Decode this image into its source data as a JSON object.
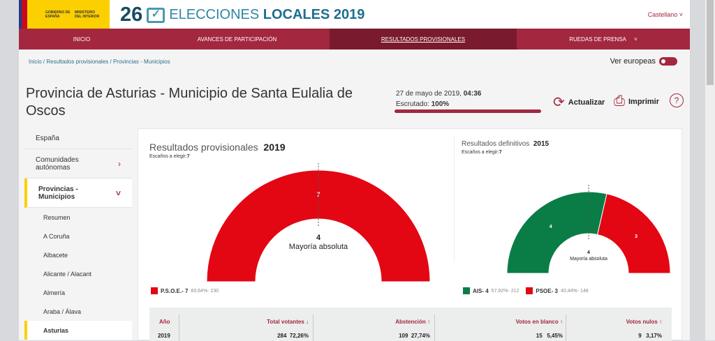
{
  "header": {
    "gov1": "GOBIERNO DE ESPAÑA",
    "gov2": "MINISTERIO DEL INTERIOR",
    "num": "26",
    "title_a": "ELECCIONES",
    "title_b": "LOCALES 2019",
    "lang": "Castellano"
  },
  "nav": [
    "INICIO",
    "AVANCES DE PARTICIPACIÓN",
    "RESULTADOS PROVISIONALES",
    "RUEDAS DE PRENSA"
  ],
  "breadcrumb": "Inicio /  Resultados provisionales /  Provincias - Municipios",
  "ver_europeas": "Ver europeas",
  "title": "Provincia de Asturias - Municipio de Santa Eulalia de Oscos",
  "date": "27 de mayo de 2019, ",
  "time": "04:36",
  "escrutado_label": "Escrutado: ",
  "escrutado": "100%",
  "escrutado_pct": 100,
  "actions": {
    "refresh": "Actualizar",
    "print": "Imprimir",
    "help": "?"
  },
  "sidebar": [
    "España",
    "Comunidades autónomas",
    "Provincias - Municipios",
    "Resumen",
    "A Coruña",
    "Albacete",
    "Alicante / Alacant",
    "Almería",
    "Araba / Álava",
    "Asturias"
  ],
  "chart_data": [
    {
      "type": "pie",
      "title": "Resultados provisionales",
      "year": "2019",
      "seats_label": "Escaños a elegir:",
      "seats": "7",
      "majority": "4",
      "majority_label": "Mayoría absoluta",
      "series": [
        {
          "name": "P.S.O.E.",
          "seats": 7,
          "pct": "83,64%",
          "votes": "230",
          "color": "#e30613"
        }
      ]
    },
    {
      "type": "pie",
      "title": "Resultados definitivos",
      "year": "2015",
      "seats_label": "Escaños a elegir:",
      "seats": "7",
      "majority": "4",
      "majority_label": "Mayoría absoluta",
      "series": [
        {
          "name": "AIS",
          "seats": 4,
          "pct": "57,92%",
          "votes": "212",
          "color": "#0a7d47"
        },
        {
          "name": "PSOE",
          "seats": 3,
          "pct": "40,44%",
          "votes": "148",
          "color": "#e30613"
        }
      ]
    }
  ],
  "table": {
    "headers": [
      "Año",
      "Total votantes ↓",
      "Abstención ↑",
      "Votos en blanco ↑",
      "Votos nulos ↑"
    ],
    "rows": [
      [
        "2019",
        "284  72,26%",
        "109  27,74%",
        "15   5,45%",
        "9   3,17%"
      ]
    ]
  }
}
